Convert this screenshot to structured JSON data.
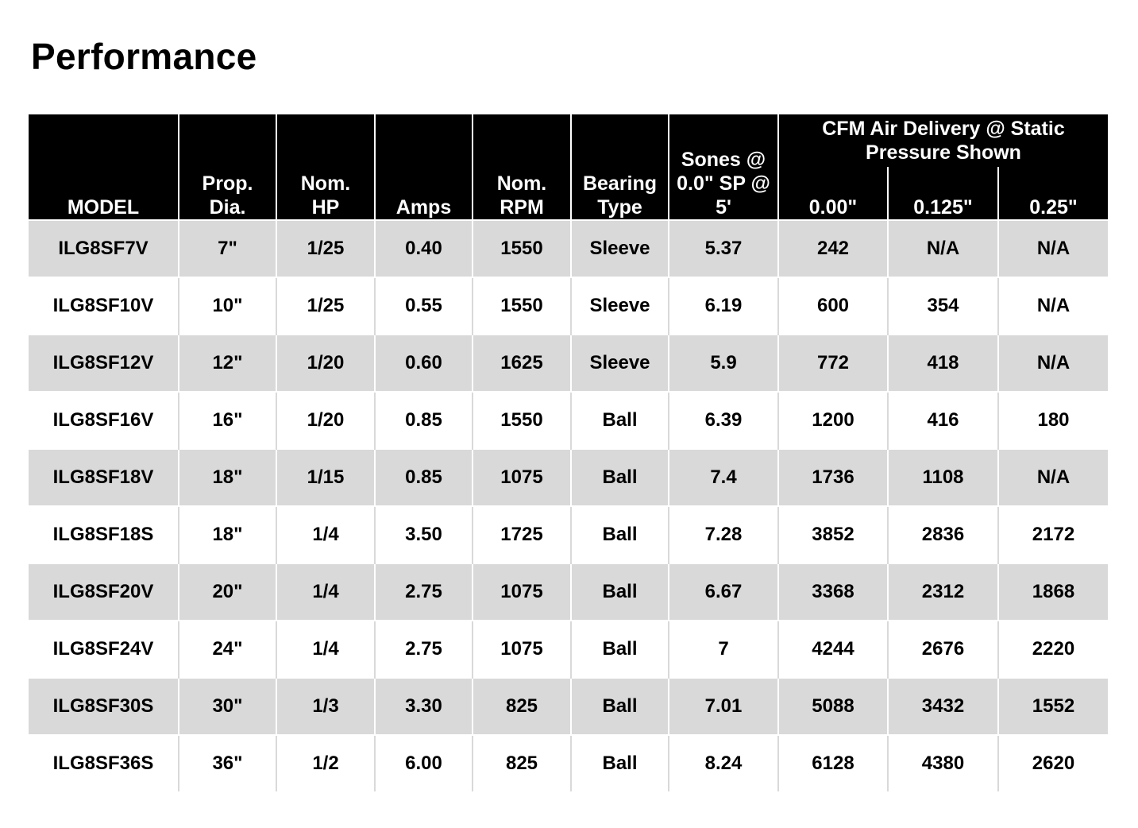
{
  "title": "Performance",
  "headers": {
    "model": "MODEL",
    "prop_dia_line1": "Prop.",
    "prop_dia_line2": "Dia.",
    "nom_hp_line1": "Nom.",
    "nom_hp_line2": "HP",
    "amps": "Amps",
    "nom_rpm_line1": "Nom.",
    "nom_rpm_line2": "RPM",
    "bearing_line1": "Bearing",
    "bearing_line2": "Type",
    "sones_line1": "Sones @",
    "sones_line2": "0.0\" SP @",
    "sones_line3": "5'",
    "cfm_group_line1": "CFM Air Delivery @ Static",
    "cfm_group_line2": "Pressure Shown",
    "sp_0": "0.00\"",
    "sp_0125": "0.125\"",
    "sp_025": "0.25\""
  },
  "rows": [
    {
      "model": "ILG8SF7V",
      "prop": "7\"",
      "hp": "1/25",
      "amps": "0.40",
      "rpm": "1550",
      "bearing": "Sleeve",
      "sones": "5.37",
      "cfm0": "242",
      "cfm0125": "N/A",
      "cfm025": "N/A"
    },
    {
      "model": "ILG8SF10V",
      "prop": "10\"",
      "hp": "1/25",
      "amps": "0.55",
      "rpm": "1550",
      "bearing": "Sleeve",
      "sones": "6.19",
      "cfm0": "600",
      "cfm0125": "354",
      "cfm025": "N/A"
    },
    {
      "model": "ILG8SF12V",
      "prop": "12\"",
      "hp": "1/20",
      "amps": "0.60",
      "rpm": "1625",
      "bearing": "Sleeve",
      "sones": "5.9",
      "cfm0": "772",
      "cfm0125": "418",
      "cfm025": "N/A"
    },
    {
      "model": "ILG8SF16V",
      "prop": "16\"",
      "hp": "1/20",
      "amps": "0.85",
      "rpm": "1550",
      "bearing": "Ball",
      "sones": "6.39",
      "cfm0": "1200",
      "cfm0125": "416",
      "cfm025": "180"
    },
    {
      "model": "ILG8SF18V",
      "prop": "18\"",
      "hp": "1/15",
      "amps": "0.85",
      "rpm": "1075",
      "bearing": "Ball",
      "sones": "7.4",
      "cfm0": "1736",
      "cfm0125": "1108",
      "cfm025": "N/A"
    },
    {
      "model": "ILG8SF18S",
      "prop": "18\"",
      "hp": "1/4",
      "amps": "3.50",
      "rpm": "1725",
      "bearing": "Ball",
      "sones": "7.28",
      "cfm0": "3852",
      "cfm0125": "2836",
      "cfm025": "2172"
    },
    {
      "model": "ILG8SF20V",
      "prop": "20\"",
      "hp": "1/4",
      "amps": "2.75",
      "rpm": "1075",
      "bearing": "Ball",
      "sones": "6.67",
      "cfm0": "3368",
      "cfm0125": "2312",
      "cfm025": "1868"
    },
    {
      "model": "ILG8SF24V",
      "prop": "24\"",
      "hp": "1/4",
      "amps": "2.75",
      "rpm": "1075",
      "bearing": "Ball",
      "sones": "7",
      "cfm0": "4244",
      "cfm0125": "2676",
      "cfm025": "2220"
    },
    {
      "model": "ILG8SF30S",
      "prop": "30\"",
      "hp": "1/3",
      "amps": "3.30",
      "rpm": "825",
      "bearing": "Ball",
      "sones": "7.01",
      "cfm0": "5088",
      "cfm0125": "3432",
      "cfm025": "1552"
    },
    {
      "model": "ILG8SF36S",
      "prop": "36\"",
      "hp": "1/2",
      "amps": "6.00",
      "rpm": "825",
      "bearing": "Ball",
      "sones": "8.24",
      "cfm0": "6128",
      "cfm0125": "4380",
      "cfm025": "2620"
    }
  ],
  "colors": {
    "header_bg": "#000000",
    "header_text": "#ffffff",
    "shaded_row": "#d9d9d9",
    "plain_row": "#ffffff"
  }
}
